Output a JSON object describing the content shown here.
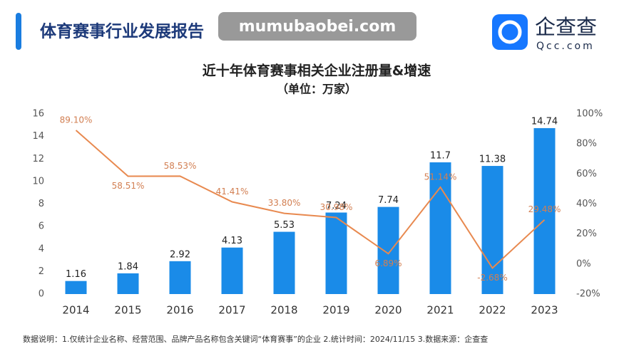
{
  "header": {
    "title": "体育赛事行业发展报告",
    "watermark": "mumubaobei.com",
    "logo": "企查查",
    "logo_sub": "Qcc.com"
  },
  "chart_data": {
    "type": "bar",
    "title": "近十年体育赛事相关企业注册量&增速",
    "subtitle": "（单位：万家）",
    "categories": [
      "2014",
      "2015",
      "2016",
      "2017",
      "2018",
      "2019",
      "2020",
      "2021",
      "2022",
      "2023"
    ],
    "series": [
      {
        "type": "bar",
        "color": "#1a8be8",
        "values": [
          1.16,
          1.84,
          2.92,
          4.13,
          5.53,
          7.24,
          7.74,
          11.7,
          11.38,
          14.74
        ]
      },
      {
        "type": "line",
        "axis": "y2",
        "color": "#e8894f",
        "values": [
          89.1,
          58.51,
          58.53,
          41.41,
          33.8,
          30.98,
          6.89,
          51.14,
          -2.68,
          29.48
        ],
        "value_labels": [
          "89.10%",
          "58.51%",
          "58.53%",
          "41.41%",
          "33.80%",
          "30.98%",
          "6.89%",
          "51.14%",
          "-2.68%",
          "29.48%"
        ]
      }
    ],
    "ylim": [
      0,
      16
    ],
    "yticks": [
      0,
      2,
      4,
      6,
      8,
      10,
      12,
      14,
      16
    ],
    "y2lim": [
      -20,
      100
    ],
    "y2ticks": [
      {
        "value": -20,
        "label": "-20%"
      },
      {
        "value": 0,
        "label": "0%"
      },
      {
        "value": 20,
        "label": "20%"
      },
      {
        "value": 40,
        "label": "40%"
      },
      {
        "value": 60,
        "label": "60%"
      },
      {
        "value": 80,
        "label": "80%"
      },
      {
        "value": 100,
        "label": "100%"
      }
    ],
    "footnote": "数据说明：1.仅统计企业名称、经营范围、品牌产品名称包含关键词“体育赛事”的企业  2.统计时间：2024/11/15  3.数据来源：企查查"
  }
}
